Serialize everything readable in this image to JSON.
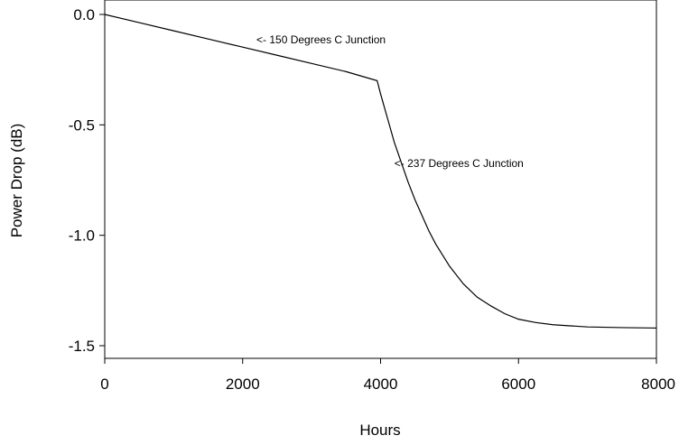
{
  "chart_data": {
    "type": "line",
    "title": "",
    "xlabel": "Hours",
    "ylabel": "Power Drop (dB)",
    "xlim": [
      0,
      8000
    ],
    "ylim": [
      -1.55,
      0.05
    ],
    "x_ticks": [
      0,
      2000,
      4000,
      6000,
      8000
    ],
    "x_tick_labels": [
      "0",
      "2000",
      "4000",
      "6000",
      "8000"
    ],
    "y_ticks": [
      0.0,
      -0.5,
      -1.0,
      -1.5
    ],
    "y_tick_labels": [
      "0.0",
      "-0.5",
      "-1.0",
      "-1.5"
    ],
    "grid": false,
    "legend": "none",
    "line_color": "#000000",
    "series": [
      {
        "x": [
          0,
          500,
          1000,
          1500,
          2000,
          2500,
          3000,
          3500,
          3950,
          4000,
          4100,
          4200,
          4300,
          4400,
          4500,
          4600,
          4700,
          4800,
          4900,
          5000,
          5200,
          5400,
          5600,
          5800,
          6000,
          6250,
          6500,
          6750,
          7000,
          7500,
          8000
        ],
        "y": [
          0.0,
          -0.037,
          -0.074,
          -0.111,
          -0.148,
          -0.185,
          -0.222,
          -0.259,
          -0.3,
          -0.36,
          -0.47,
          -0.58,
          -0.67,
          -0.76,
          -0.84,
          -0.91,
          -0.98,
          -1.04,
          -1.09,
          -1.14,
          -1.22,
          -1.28,
          -1.32,
          -1.355,
          -1.38,
          -1.395,
          -1.405,
          -1.41,
          -1.415,
          -1.418,
          -1.42
        ]
      }
    ],
    "annotations": [
      {
        "text": "<- 150 Degrees C Junction",
        "x": 2200,
        "y": -0.13
      },
      {
        "text": "<- 237 Degrees C Junction",
        "x": 4200,
        "y": -0.69
      }
    ]
  }
}
